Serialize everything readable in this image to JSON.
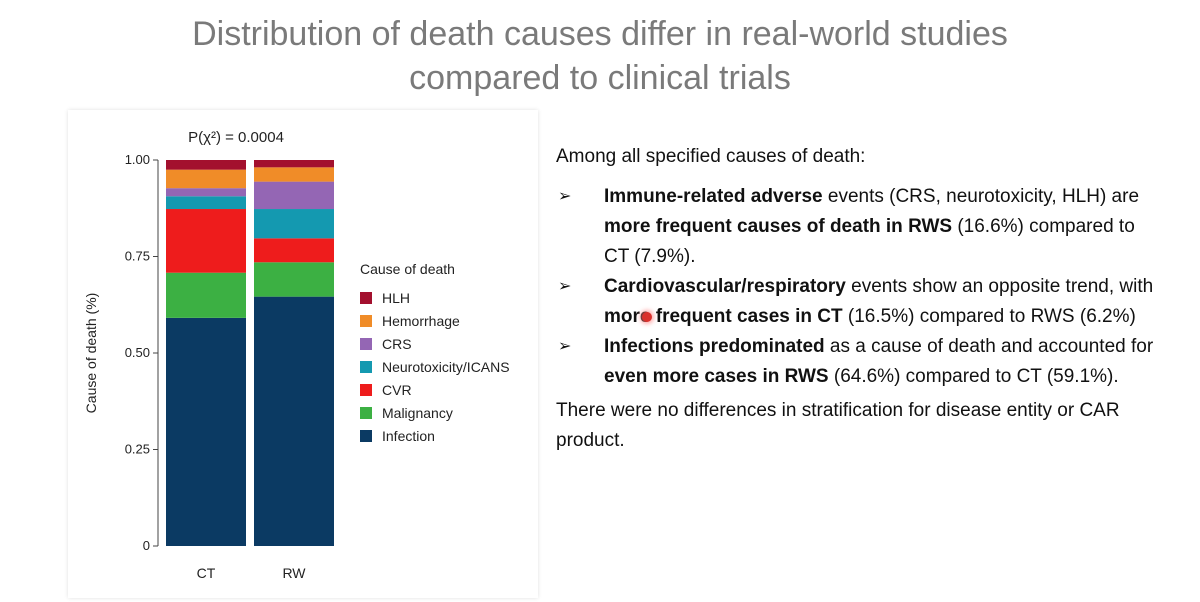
{
  "slide": {
    "title_line1": "Distribution of death causes differ in real-world studies",
    "title_line2": "compared to clinical trials"
  },
  "chart_data": {
    "type": "bar",
    "stacked": true,
    "title": "P(χ²) = 0.0004",
    "xlabel": "",
    "ylabel": "Cause of death (%)",
    "ylim": [
      0,
      1
    ],
    "yticks": [
      "0",
      "0.25",
      "0.50",
      "0.75",
      "1.00"
    ],
    "yticks_values": [
      0,
      0.25,
      0.5,
      0.75,
      1.0
    ],
    "categories": [
      "CT",
      "RW"
    ],
    "legend_title": "Cause of death",
    "legend_position": "right",
    "series": [
      {
        "name": "Infection",
        "color": "#0b3a63",
        "values": [
          0.591,
          0.646
        ]
      },
      {
        "name": "Malignancy",
        "color": "#3cb043",
        "values": [
          0.117,
          0.089
        ]
      },
      {
        "name": "CVR",
        "color": "#ee1c1c",
        "values": [
          0.165,
          0.062
        ]
      },
      {
        "name": "Neurotoxicity/ICANS",
        "color": "#1499b0",
        "values": [
          0.033,
          0.076
        ]
      },
      {
        "name": "CRS",
        "color": "#9466b4",
        "values": [
          0.021,
          0.071
        ]
      },
      {
        "name": "Hemorrhage",
        "color": "#f08c28",
        "values": [
          0.048,
          0.037
        ]
      },
      {
        "name": "HLH",
        "color": "#a3102e",
        "values": [
          0.025,
          0.019
        ]
      }
    ]
  },
  "text": {
    "intro": "Among all specified causes of death:",
    "b1_bold1": "Immune-related adverse",
    "b1_t1": " events (CRS, neurotoxicity, HLH) are ",
    "b1_bold2": "more frequent causes of death in RWS",
    "b1_t2": " (16.6%) compared to CT (7.9%).",
    "b2_bold1": "Cardiovascular/respiratory",
    "b2_t1": " events show an opposite trend, with ",
    "b2_bold2": "more frequent cases in CT",
    "b2_t2": " (16.5%) compared to RWS (6.2%)",
    "b3_bold1": "Infections predominated",
    "b3_t1": " as a cause of death and accounted for ",
    "b3_bold2": "even more cases in RWS",
    "b3_t2": " (64.6%) compared to CT (59.1%).",
    "outro": "There were no differences in stratification for disease entity or CAR product.",
    "arrow_glyph": "➢"
  }
}
